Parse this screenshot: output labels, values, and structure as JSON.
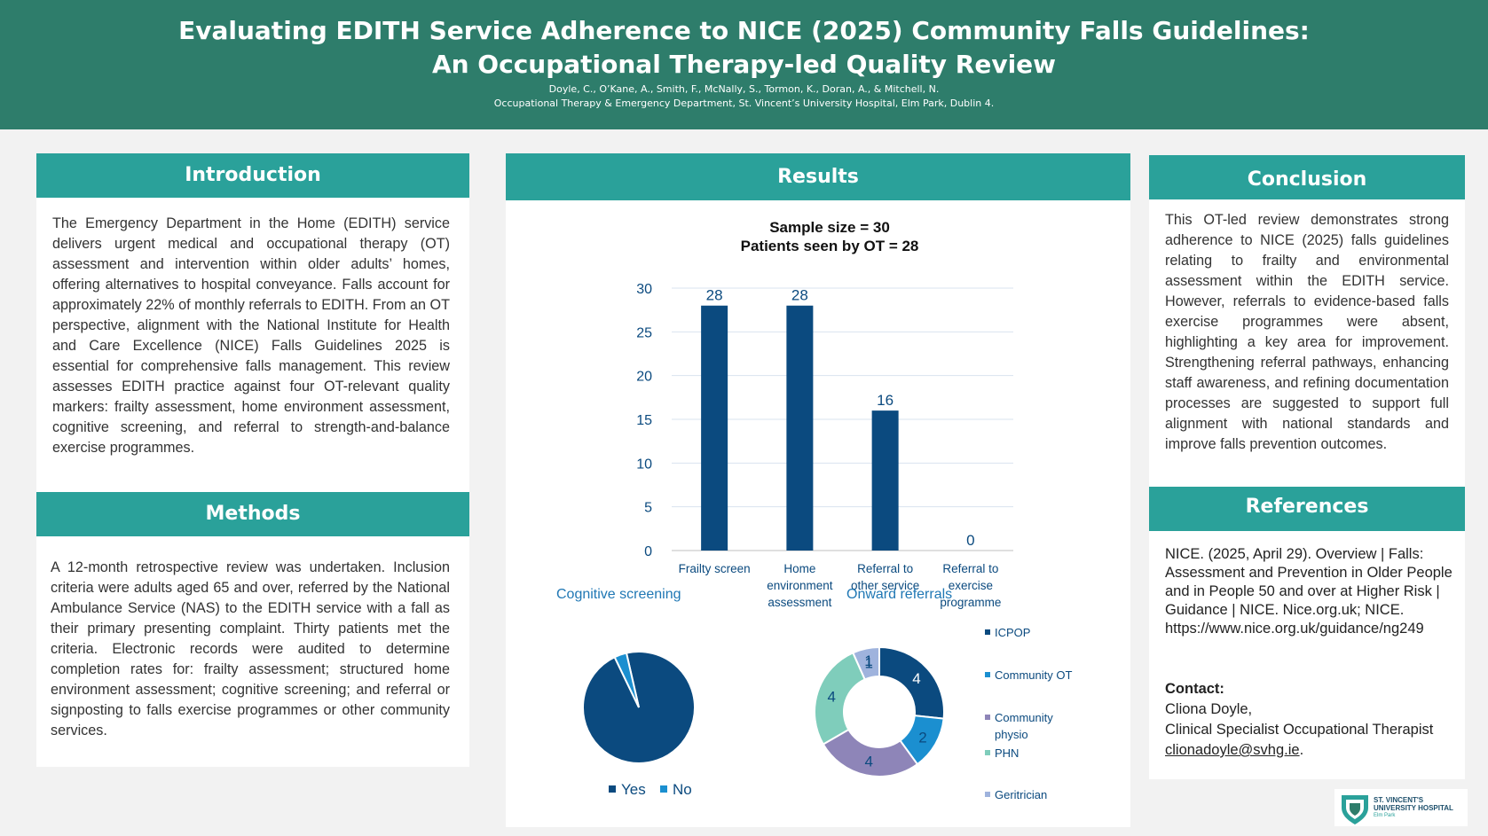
{
  "header": {
    "title_line1": "Evaluating EDITH Service Adherence to NICE (2025) Community Falls Guidelines:",
    "title_line2": "An Occupational Therapy-led Quality Review",
    "authors": "Doyle, C., O’Kane, A., Smith, F., McNally, S., Tormon, K., Doran, A., & Mitchell, N.",
    "affiliation": "Occupational Therapy & Emergency Department, St. Vincent’s University Hospital, Elm Park, Dublin 4."
  },
  "introduction": {
    "heading": "Introduction",
    "text": "The Emergency Department in the Home (EDITH) service delivers urgent medical and occupational therapy (OT) assessment and intervention within older adults’ homes, offering alternatives to hospital conveyance. Falls account for approximately 22% of monthly referrals to EDITH. From an OT perspective, alignment with the National Institute for Health and Care Excellence (NICE) Falls Guidelines 2025 is essential for comprehensive falls management. This review assesses EDITH practice against four OT-relevant quality markers: frailty assessment, home environment assessment, cognitive screening, and referral to strength-and-balance exercise programmes."
  },
  "methods": {
    "heading": "Methods",
    "text": "A 12-month retrospective review was undertaken. Inclusion criteria were adults aged 65 and over, referred by the National Ambulance Service (NAS) to the EDITH service with a fall as their primary presenting complaint. Thirty patients met the criteria. Electronic records were audited to determine completion rates for: frailty assessment; structured home environment assessment; cognitive screening; and referral or signposting to falls exercise programmes or other community services."
  },
  "results": {
    "heading": "Results",
    "chart_title_line1": "Sample size = 30",
    "chart_title_line2": "Patients seen by OT = 28"
  },
  "conclusion": {
    "heading": "Conclusion",
    "text": "This OT-led review demonstrates strong adherence to NICE (2025) falls guidelines relating to frailty and environmental assessment within the EDITH service. However, referrals to evidence-based falls exercise programmes were absent, highlighting a key area for improvement. Strengthening referral pathways, enhancing staff awareness, and refining documentation processes are suggested to support full alignment with national standards and improve falls prevention outcomes."
  },
  "references": {
    "heading": "References",
    "text": "NICE. (2025, April 29). Overview | Falls: Assessment and Prevention in Older People and in People 50 and over at Higher Risk | Guidance | NICE. Nice.org.uk; NICE. https://www.nice.org.uk/guidance/ng249",
    "contact_label": "Contact:",
    "contact_name": "Cliona Doyle,",
    "contact_role": "Clinical Specialist Occupational Therapist",
    "contact_email": "clionadoyle@svhg.ie",
    "contact_email_suffix": "."
  },
  "logo": {
    "line1": "ST. VINCENT'S",
    "line2": "UNIVERSITY HOSPITAL",
    "line3": "Elm Park"
  },
  "colors": {
    "header_bg": "#2e7d6b",
    "section_head": "#2aa19a",
    "bar": "#0b4a7f",
    "pie_yes": "#0b4a7f",
    "pie_no": "#1b8fd0"
  },
  "chart_data": [
    {
      "type": "bar",
      "categories": [
        [
          "Frailty screen"
        ],
        [
          "Home",
          "environment",
          "assessment"
        ],
        [
          "Referral to",
          "other service"
        ],
        [
          "Referral to",
          "exercise",
          "programme"
        ]
      ],
      "values": [
        28,
        28,
        16,
        0
      ],
      "ylim": [
        0,
        30
      ],
      "yticks": [
        0,
        5,
        10,
        15,
        20,
        25,
        30
      ],
      "grid": true,
      "title": "Sample size = 30 / Patients seen by OT = 28"
    },
    {
      "type": "pie",
      "title": "Cognitive screening",
      "labels": [
        "Yes",
        "No"
      ],
      "values": [
        27,
        1
      ],
      "colors": [
        "#0b4a7f",
        "#1b8fd0"
      ],
      "legend": "bottom"
    },
    {
      "type": "pie",
      "donut": true,
      "title": "Onward referrals",
      "labels": [
        "ICPOP",
        "Community OT",
        "Community physio",
        "PHN",
        "Geritrician"
      ],
      "legend_labels": [
        [
          "ICPOP"
        ],
        [
          "Community OT"
        ],
        [
          "Community",
          "physio"
        ],
        [
          "PHN"
        ],
        [
          "Geritrician"
        ]
      ],
      "values": [
        4,
        2,
        4,
        4,
        1
      ],
      "extra_label": "1",
      "colors": [
        "#0b4a7f",
        "#1b8fd0",
        "#8e85b8",
        "#7fcdbb",
        "#9fb3dd"
      ],
      "legend": "right"
    }
  ]
}
